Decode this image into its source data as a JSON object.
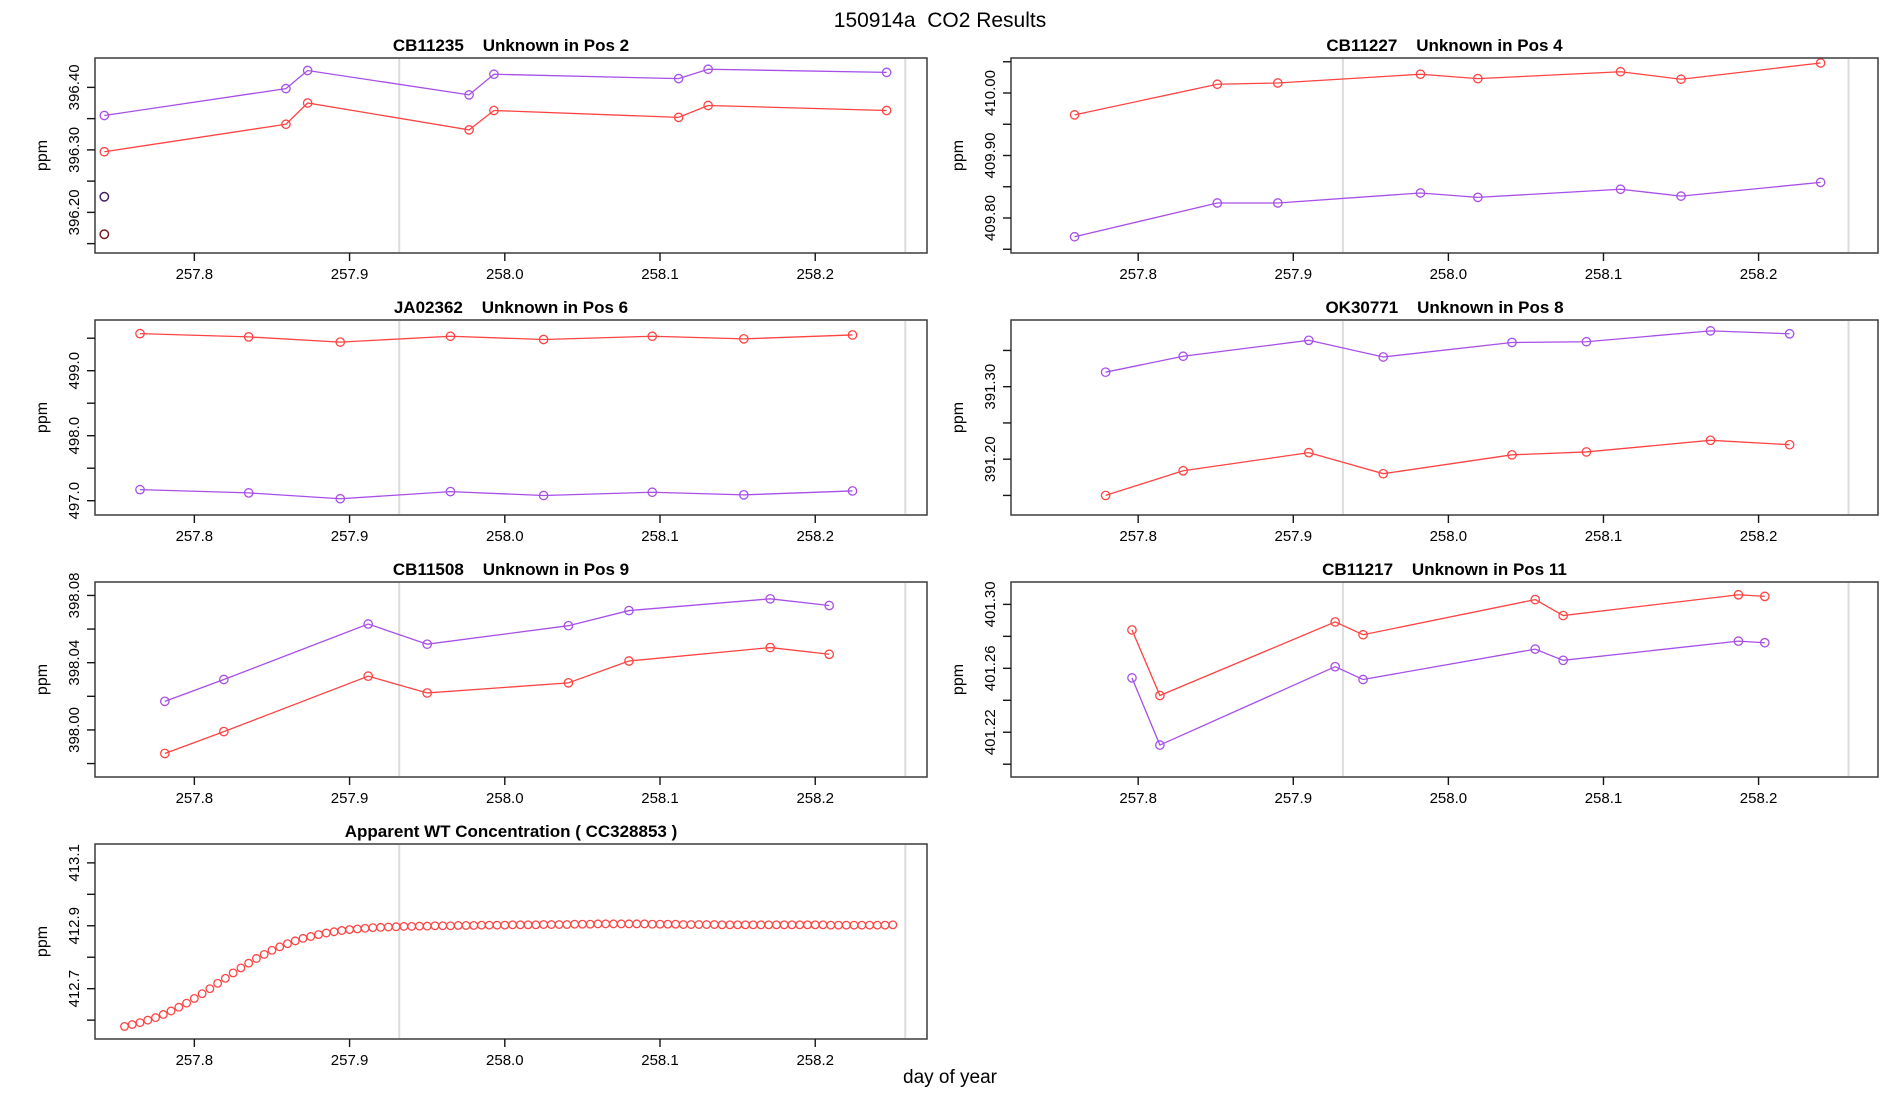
{
  "page_title": "150914a  CO2 Results",
  "x_axis_title": "day of year",
  "colors": {
    "red_series": "#ff4343",
    "purple_series": "#a74fe8",
    "dark_red_outlier": "#7c1a1a",
    "dark_purple_outlier": "#3f2060",
    "guide_line": "#dcdcdc",
    "frame": "#3c3c3c",
    "tick": "#151515"
  },
  "xticks": {
    "values": [
      257.8,
      257.9,
      258.0,
      258.1,
      258.2
    ],
    "labels": [
      "257.8",
      "257.9",
      "258.0",
      "258.1",
      "258.2"
    ]
  },
  "chart_data": [
    {
      "type": "line",
      "title": "CB11235    Unknown in Pos 2",
      "ylabel": "ppm",
      "xlim": [
        257.736,
        258.272
      ],
      "ylim": [
        396.135,
        396.447
      ],
      "grid": false,
      "guide_lines_x": [
        257.932,
        258.258
      ],
      "yticks": {
        "values": [
          396.15,
          396.2,
          396.25,
          396.3,
          396.35,
          396.4
        ],
        "labels": [
          "",
          "396.20",
          "",
          "396.30",
          "",
          "396.40"
        ]
      },
      "series": [
        {
          "name": "red",
          "color": "#ff4343",
          "x": [
            257.742,
            257.859,
            257.873,
            257.977,
            257.993,
            258.112,
            258.131,
            258.246
          ],
          "y": [
            396.297,
            396.341,
            396.375,
            396.332,
            396.363,
            396.352,
            396.371,
            396.363
          ]
        },
        {
          "name": "purple",
          "color": "#a74fe8",
          "x": [
            257.742,
            257.859,
            257.873,
            257.977,
            257.993,
            258.112,
            258.131,
            258.246
          ],
          "y": [
            396.355,
            396.398,
            396.427,
            396.388,
            396.421,
            396.414,
            396.429,
            396.424
          ]
        }
      ],
      "extra_points": [
        {
          "name": "dark-red-outlier",
          "color": "#7c1a1a",
          "x": 257.742,
          "y": 396.165
        },
        {
          "name": "dark-purple-outlier",
          "color": "#3f2060",
          "x": 257.742,
          "y": 396.225
        }
      ]
    },
    {
      "type": "line",
      "title": "CB11227    Unknown in Pos 4",
      "ylabel": "ppm",
      "xlim": [
        257.718,
        258.277
      ],
      "ylim": [
        409.744,
        410.056
      ],
      "grid": false,
      "guide_lines_x": [
        257.932,
        258.258
      ],
      "yticks": {
        "values": [
          409.75,
          409.8,
          409.85,
          409.9,
          409.95,
          410.0,
          410.05
        ],
        "labels": [
          "",
          "409.80",
          "",
          "409.90",
          "",
          "410.00",
          ""
        ]
      },
      "series": [
        {
          "name": "red",
          "color": "#ff4343",
          "x": [
            257.759,
            257.851,
            257.89,
            257.982,
            258.019,
            258.111,
            258.15,
            258.24
          ],
          "y": [
            409.965,
            410.014,
            410.016,
            410.03,
            410.023,
            410.034,
            410.022,
            410.048
          ]
        },
        {
          "name": "purple",
          "color": "#a74fe8",
          "x": [
            257.759,
            257.851,
            257.89,
            257.982,
            258.019,
            258.111,
            258.15,
            258.24
          ],
          "y": [
            409.77,
            409.824,
            409.824,
            409.84,
            409.833,
            409.846,
            409.835,
            409.857
          ]
        }
      ],
      "extra_points": []
    },
    {
      "type": "line",
      "title": "JA02362    Unknown in Pos 6",
      "ylabel": "ppm",
      "xlim": [
        257.736,
        258.272
      ],
      "ylim": [
        496.78,
        499.78
      ],
      "grid": false,
      "guide_lines_x": [
        257.932,
        258.258
      ],
      "yticks": {
        "values": [
          497.0,
          497.5,
          498.0,
          498.5,
          499.0,
          499.5
        ],
        "labels": [
          "497.0",
          "",
          "498.0",
          "",
          "499.0",
          ""
        ]
      },
      "series": [
        {
          "name": "red",
          "color": "#ff4343",
          "x": [
            257.765,
            257.835,
            257.894,
            257.965,
            258.025,
            258.095,
            258.154,
            258.224
          ],
          "y": [
            499.57,
            499.52,
            499.44,
            499.53,
            499.48,
            499.53,
            499.49,
            499.55
          ]
        },
        {
          "name": "purple",
          "color": "#a74fe8",
          "x": [
            257.765,
            257.835,
            257.894,
            257.965,
            258.025,
            258.095,
            258.154,
            258.224
          ],
          "y": [
            497.17,
            497.12,
            497.03,
            497.14,
            497.08,
            497.13,
            497.09,
            497.15
          ]
        }
      ],
      "extra_points": []
    },
    {
      "type": "line",
      "title": "OK30771    Unknown in Pos 8",
      "ylabel": "ppm",
      "xlim": [
        257.718,
        258.277
      ],
      "ylim": [
        391.123,
        391.392
      ],
      "grid": false,
      "guide_lines_x": [
        257.932,
        258.258
      ],
      "yticks": {
        "values": [
          391.15,
          391.2,
          391.25,
          391.3,
          391.35
        ],
        "labels": [
          "",
          "391.20",
          "",
          "391.30",
          ""
        ]
      },
      "series": [
        {
          "name": "red",
          "color": "#ff4343",
          "x": [
            257.779,
            257.829,
            257.91,
            257.958,
            258.041,
            258.089,
            258.169,
            258.22
          ],
          "y": [
            391.15,
            391.184,
            391.209,
            391.18,
            391.206,
            391.21,
            391.226,
            391.22
          ]
        },
        {
          "name": "purple",
          "color": "#a74fe8",
          "x": [
            257.779,
            257.829,
            257.91,
            257.958,
            258.041,
            258.089,
            258.169,
            258.22
          ],
          "y": [
            391.32,
            391.342,
            391.364,
            391.341,
            391.361,
            391.362,
            391.377,
            391.373
          ]
        }
      ],
      "extra_points": []
    },
    {
      "type": "line",
      "title": "CB11508    Unknown in Pos 9",
      "ylabel": "ppm",
      "xlim": [
        257.736,
        258.272
      ],
      "ylim": [
        397.972,
        398.088
      ],
      "grid": false,
      "guide_lines_x": [
        257.932,
        258.258
      ],
      "yticks": {
        "values": [
          397.98,
          398.0,
          398.02,
          398.04,
          398.06,
          398.08
        ],
        "labels": [
          "",
          "398.00",
          "",
          "398.04",
          "",
          "398.08"
        ]
      },
      "series": [
        {
          "name": "red",
          "color": "#ff4343",
          "x": [
            257.781,
            257.819,
            257.912,
            257.95,
            258.041,
            258.08,
            258.171,
            258.209
          ],
          "y": [
            397.986,
            397.999,
            398.032,
            398.022,
            398.028,
            398.041,
            398.049,
            398.045
          ]
        },
        {
          "name": "purple",
          "color": "#a74fe8",
          "x": [
            257.781,
            257.819,
            257.912,
            257.95,
            258.041,
            258.08,
            258.171,
            258.209
          ],
          "y": [
            398.017,
            398.03,
            398.063,
            398.051,
            398.062,
            398.071,
            398.078,
            398.074
          ]
        }
      ],
      "extra_points": []
    },
    {
      "type": "line",
      "title": "CB11217    Unknown in Pos 11",
      "ylabel": "ppm",
      "xlim": [
        257.718,
        258.277
      ],
      "ylim": [
        401.192,
        401.314
      ],
      "grid": false,
      "guide_lines_x": [
        257.932,
        258.258
      ],
      "yticks": {
        "values": [
          401.2,
          401.22,
          401.24,
          401.26,
          401.28,
          401.3
        ],
        "labels": [
          "",
          "401.22",
          "",
          "401.26",
          "",
          "401.30"
        ]
      },
      "series": [
        {
          "name": "red",
          "color": "#ff4343",
          "x": [
            257.796,
            257.814,
            257.927,
            257.945,
            258.056,
            258.074,
            258.187,
            258.204
          ],
          "y": [
            401.284,
            401.243,
            401.289,
            401.281,
            401.303,
            401.293,
            401.306,
            401.305
          ]
        },
        {
          "name": "purple",
          "color": "#a74fe8",
          "x": [
            257.796,
            257.814,
            257.927,
            257.945,
            258.056,
            258.074,
            258.187,
            258.204
          ],
          "y": [
            401.254,
            401.212,
            401.261,
            401.253,
            401.272,
            401.265,
            401.277,
            401.276
          ]
        }
      ],
      "extra_points": []
    },
    {
      "type": "scatter",
      "title": "Apparent WT Concentration ( CC328853 )",
      "ylabel": "ppm",
      "xlim": [
        257.736,
        258.272
      ],
      "ylim": [
        412.54,
        413.16
      ],
      "grid": false,
      "guide_lines_x": [
        257.932,
        258.258
      ],
      "yticks": {
        "values": [
          412.6,
          412.7,
          412.8,
          412.9,
          413.0,
          413.1
        ],
        "labels": [
          "",
          "412.7",
          "",
          "412.9",
          "",
          "413.1"
        ]
      },
      "series": [
        {
          "name": "red",
          "color": "#ff4343",
          "x": [
            257.755,
            257.76,
            257.765,
            257.77,
            257.775,
            257.78,
            257.785,
            257.79,
            257.795,
            257.8,
            257.805,
            257.81,
            257.815,
            257.82,
            257.825,
            257.83,
            257.835,
            257.84,
            257.845,
            257.85,
            257.855,
            257.86,
            257.865,
            257.87,
            257.875,
            257.88,
            257.885,
            257.89,
            257.895,
            257.9,
            257.905,
            257.91,
            257.915,
            257.92,
            257.925,
            257.93,
            257.935,
            257.94,
            257.945,
            257.95,
            257.955,
            257.96,
            257.965,
            257.97,
            257.975,
            257.98,
            257.985,
            257.99,
            257.995,
            258.0,
            258.005,
            258.01,
            258.015,
            258.02,
            258.025,
            258.03,
            258.035,
            258.04,
            258.045,
            258.05,
            258.055,
            258.06,
            258.065,
            258.07,
            258.075,
            258.08,
            258.085,
            258.09,
            258.095,
            258.1,
            258.105,
            258.11,
            258.115,
            258.12,
            258.125,
            258.13,
            258.135,
            258.14,
            258.145,
            258.15,
            258.155,
            258.16,
            258.165,
            258.17,
            258.175,
            258.18,
            258.185,
            258.19,
            258.195,
            258.2,
            258.205,
            258.21,
            258.215,
            258.22,
            258.225,
            258.23,
            258.235,
            258.24,
            258.245,
            258.25
          ],
          "y": [
            412.58,
            412.586,
            412.592,
            412.6,
            412.608,
            412.618,
            412.629,
            412.641,
            412.654,
            412.669,
            412.684,
            412.7,
            412.717,
            412.733,
            412.75,
            412.766,
            412.781,
            412.796,
            412.809,
            412.822,
            412.833,
            412.843,
            412.852,
            412.86,
            412.866,
            412.872,
            412.877,
            412.881,
            412.885,
            412.888,
            412.89,
            412.892,
            412.894,
            412.895,
            412.896,
            412.897,
            412.898,
            412.898,
            412.899,
            412.899,
            412.9,
            412.9,
            412.9,
            412.901,
            412.901,
            412.901,
            412.902,
            412.902,
            412.902,
            412.902,
            412.903,
            412.903,
            412.903,
            412.903,
            412.904,
            412.904,
            412.904,
            412.904,
            412.905,
            412.905,
            412.905,
            412.906,
            412.906,
            412.906,
            412.906,
            412.906,
            412.906,
            412.906,
            412.905,
            412.905,
            412.905,
            412.905,
            412.904,
            412.904,
            412.904,
            412.904,
            412.904,
            412.903,
            412.903,
            412.903,
            412.903,
            412.903,
            412.903,
            412.903,
            412.903,
            412.903,
            412.903,
            412.903,
            412.903,
            412.903,
            412.903,
            412.902,
            412.902,
            412.902,
            412.902,
            412.902,
            412.902,
            412.902,
            412.902,
            412.903
          ]
        }
      ],
      "extra_points": []
    }
  ]
}
